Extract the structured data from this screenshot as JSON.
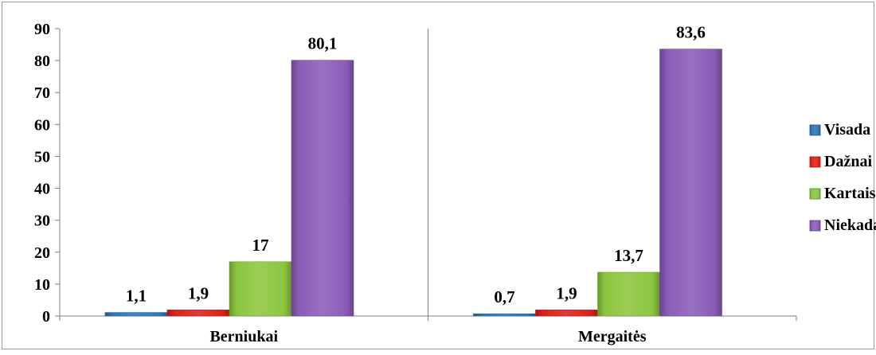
{
  "chart_data": {
    "type": "bar",
    "categories": [
      "Berniukai",
      "Mergaitės"
    ],
    "series": [
      {
        "name": "Visada",
        "values": [
          1.1,
          0.7
        ],
        "labels": [
          "1,1",
          "0,7"
        ],
        "color": "#2E75B6"
      },
      {
        "name": "Dažnai",
        "values": [
          1.9,
          1.9
        ],
        "labels": [
          "1,9",
          "1,9"
        ],
        "color": "#E0201B"
      },
      {
        "name": "Kartais",
        "values": [
          17,
          13.7
        ],
        "labels": [
          "17",
          "13,7"
        ],
        "color": "#8CC63F"
      },
      {
        "name": "Niekada",
        "values": [
          80.1,
          83.6
        ],
        "labels": [
          "80,1",
          "83,6"
        ],
        "color": "#8A5CB8"
      }
    ],
    "ylim": [
      0,
      90
    ],
    "yticks": [
      "0",
      "10",
      "20",
      "30",
      "40",
      "50",
      "60",
      "70",
      "80",
      "90"
    ],
    "grid": false,
    "legend": "right",
    "title": "",
    "xlabel": "",
    "ylabel": ""
  }
}
